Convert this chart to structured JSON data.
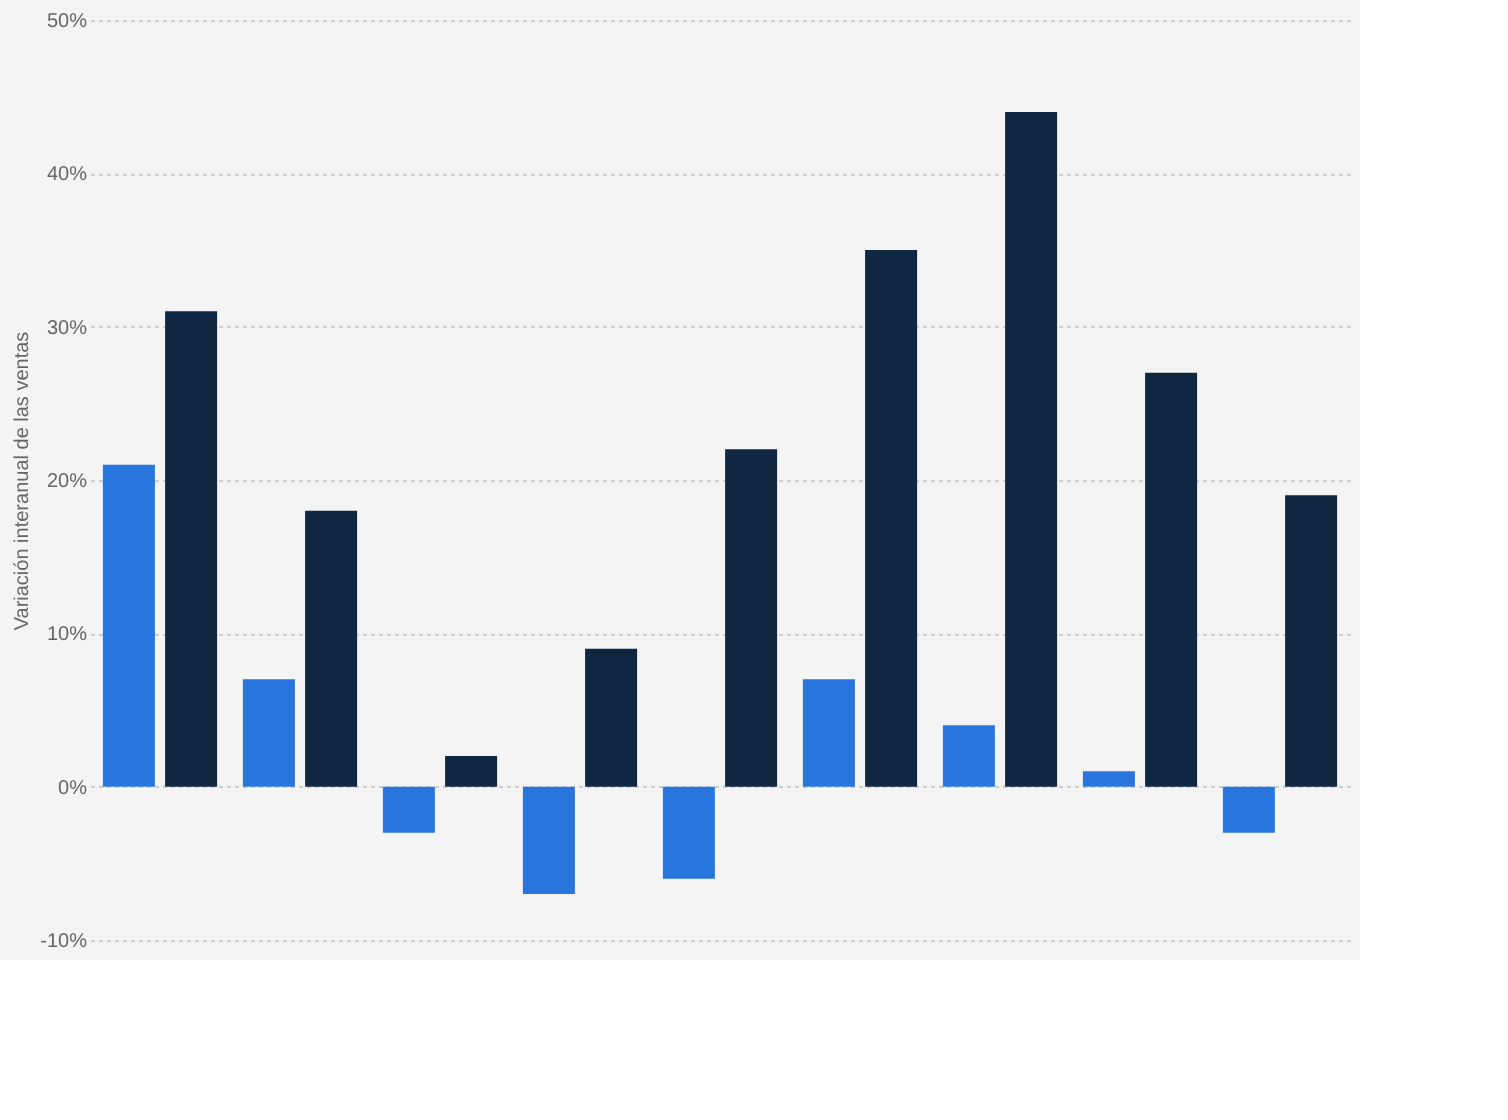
{
  "chart_data": {
    "type": "bar",
    "ylabel": "Variación interanual de las ventas",
    "categories": [
      null,
      null,
      null,
      null,
      null,
      null,
      null,
      null,
      null
    ],
    "series": [
      {
        "color": "#2876dd",
        "values": [
          21,
          7,
          -3,
          -7,
          -6,
          7,
          4,
          1,
          -3
        ]
      },
      {
        "color": "#0f2741",
        "values": [
          31,
          18,
          2,
          9,
          22,
          35,
          44,
          27,
          19
        ]
      }
    ],
    "ylim": [
      -10,
      50
    ],
    "yticks": [
      {
        "value": -10,
        "label": "-10%"
      },
      {
        "value": 0,
        "label": "0%"
      },
      {
        "value": 10,
        "label": "10%"
      },
      {
        "value": 20,
        "label": "20%"
      },
      {
        "value": 30,
        "label": "30%"
      },
      {
        "value": 40,
        "label": "40%"
      },
      {
        "value": 50,
        "label": "50%"
      }
    ],
    "grid": "y",
    "tick_labels": "y"
  }
}
